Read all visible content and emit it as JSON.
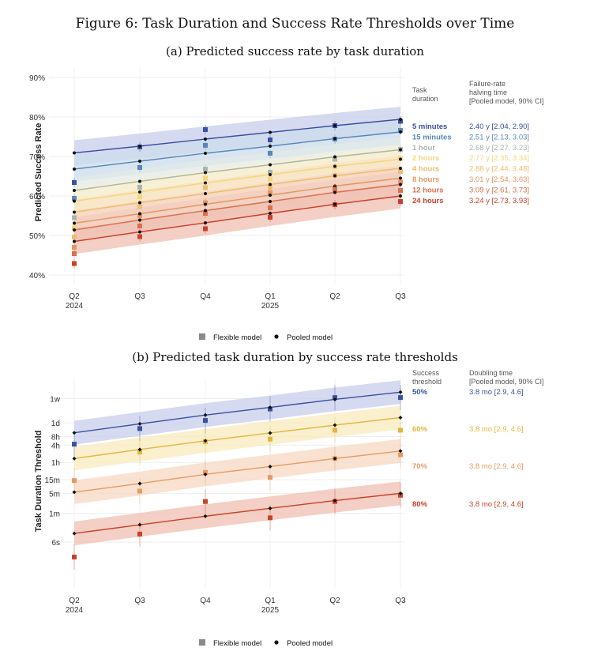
{
  "figure_title": "Figure 6: Task Duration and Success Rate Thresholds over Time",
  "legend": {
    "flexible": "Flexible model",
    "pooled": "Pooled model"
  },
  "x_ticks": [
    {
      "q": "Q2",
      "year": "2024"
    },
    {
      "q": "Q3",
      "year": ""
    },
    {
      "q": "Q4",
      "year": ""
    },
    {
      "q": "Q1",
      "year": "2025"
    },
    {
      "q": "Q2",
      "year": ""
    },
    {
      "q": "Q3",
      "year": ""
    }
  ],
  "chart_data": [
    {
      "type": "line",
      "title": "(a) Predicted success rate by task duration",
      "ylabel": "Predicted Success Rate",
      "y_ticks": [
        40,
        50,
        60,
        70,
        80,
        90
      ],
      "y_tick_labels": [
        "40%",
        "50%",
        "60%",
        "70%",
        "80%",
        "90%"
      ],
      "ylim": [
        38,
        92
      ],
      "x": [
        "2024 Q2",
        "2024 Q3",
        "2024 Q4",
        "2025 Q1",
        "2025 Q2",
        "2025 Q3"
      ],
      "legend_header_left": [
        "Task",
        "duration"
      ],
      "legend_header_right": [
        "Failure-rate",
        "halving time",
        "[Pooled model, 90% CI]"
      ],
      "series": [
        {
          "name": "5 minutes",
          "annotation": "2.40 y [2.04, 2.90]",
          "color": "#3a50a0",
          "band": "#c8cdeb",
          "pooled": [
            70.9,
            72.6,
            74.4,
            76.1,
            77.8,
            79.4
          ],
          "flexible": [
            63.4,
            72.4,
            76.8,
            74.2,
            77.8,
            78.9
          ]
        },
        {
          "name": "15 minutes",
          "annotation": "2.51 y [2.13, 3.03]",
          "color": "#5a86b8",
          "band": "#cbdcec",
          "pooled": [
            66.8,
            68.8,
            70.8,
            72.6,
            74.5,
            76.2
          ],
          "flexible": [
            59.4,
            67.2,
            72.8,
            70.8,
            74.4,
            76.6
          ]
        },
        {
          "name": "1 hour",
          "annotation": "2.68 y [2.27, 3.23]",
          "color": "#a9b5ae",
          "band": "#e3e9e5",
          "pooled": [
            61.4,
            63.7,
            65.9,
            67.9,
            69.9,
            71.7
          ],
          "flexible": [
            54.5,
            62.2,
            66.8,
            66.0,
            69.3,
            71.8
          ]
        },
        {
          "name": "2 hours",
          "annotation": "2.77 y [2.35, 3.34]",
          "color": "#f3d67e",
          "band": "#fbf0cc",
          "pooled": [
            58.7,
            61.0,
            63.3,
            65.4,
            67.5,
            69.3
          ],
          "flexible": [
            51.9,
            59.8,
            64.5,
            64.3,
            67.4,
            69.5
          ]
        },
        {
          "name": "4 hours",
          "annotation": "2.88 y [2.44, 3.48]",
          "color": "#eebc72",
          "band": "#f8e3c4",
          "pooled": [
            55.9,
            58.3,
            60.6,
            62.9,
            65.1,
            67.0
          ],
          "flexible": [
            49.6,
            57.3,
            62.1,
            62.1,
            65.2,
            66.2
          ]
        },
        {
          "name": "8 hours",
          "annotation": "3.01 y [2.54, 3.63]",
          "color": "#e39562",
          "band": "#f6d6c2",
          "pooled": [
            53.1,
            55.5,
            57.9,
            60.2,
            62.5,
            64.5
          ],
          "flexible": [
            47.0,
            55.0,
            58.3,
            60.8,
            62.0,
            63.5
          ]
        },
        {
          "name": "12 hours",
          "annotation": "3.09 y [2.61, 3.73]",
          "color": "#d8704f",
          "band": "#f2ccbd",
          "pooled": [
            51.4,
            53.9,
            56.3,
            58.6,
            60.9,
            62.9
          ],
          "flexible": [
            45.4,
            52.4,
            55.6,
            57.0,
            61.6,
            61.4
          ]
        },
        {
          "name": "24 hours",
          "annotation": "3.24 y [2.73, 3.93]",
          "color": "#c8412c",
          "band": "#efbfb2",
          "pooled": [
            48.5,
            50.9,
            53.2,
            55.6,
            57.9,
            60.0
          ],
          "flexible": [
            42.9,
            49.7,
            51.7,
            54.6,
            57.8,
            58.6
          ]
        }
      ]
    },
    {
      "type": "line",
      "title": "(b) Predicted task duration by success rate thresholds",
      "ylabel": "Task Duration Threshold",
      "y_scale": "log",
      "y_unit": "minutes",
      "y_ticks": [
        [
          0.1,
          "6s"
        ],
        [
          1,
          "1m"
        ],
        [
          5,
          "5m"
        ],
        [
          15,
          "15m"
        ],
        [
          60,
          "1h"
        ],
        [
          240,
          "4h"
        ],
        [
          480,
          "8h"
        ],
        [
          1440,
          "1d"
        ],
        [
          10080,
          "1w"
        ]
      ],
      "ylim_minutes": [
        0.013,
        60000
      ],
      "x": [
        "2024 Q2",
        "2024 Q3",
        "2024 Q4",
        "2025 Q1",
        "2025 Q2",
        "2025 Q3"
      ],
      "legend_header_left": [
        "Success",
        "threshold"
      ],
      "legend_header_right": [
        "Doubling time",
        "[Pooled model, 90% CI]"
      ],
      "series": [
        {
          "name": "50%",
          "annotation": "3.8 mo [2.9, 4.6]",
          "color": "#3a50a0",
          "band": "#c8cdeb",
          "pooled_minutes": [
            650,
            1330,
            2700,
            5000,
            9500,
            17000
          ],
          "flexible_minutes": [
            260,
            910,
            1750,
            4400,
            11000,
            11000
          ]
        },
        {
          "name": "60%",
          "annotation": "3.8 mo [2.9, 4.6]",
          "color": "#e2b63e",
          "band": "#f8ebbe",
          "pooled_minutes": [
            82,
            170,
            340,
            640,
            1200,
            2200
          ],
          "flexible_minutes": [
            0,
            138,
            320,
            390,
            800,
            800
          ]
        },
        {
          "name": "70%",
          "annotation": "3.8 mo [2.9, 4.6]",
          "color": "#e69a64",
          "band": "#f7d8c3",
          "pooled_minutes": [
            5.5,
            11,
            23,
            43,
            82,
            150
          ],
          "flexible_minutes": [
            14,
            6,
            27,
            18,
            82,
            110
          ]
        },
        {
          "name": "80%",
          "annotation": "3.8 mo [2.9, 4.6]",
          "color": "#c8412c",
          "band": "#efbfb2",
          "pooled_minutes": [
            0.2,
            0.4,
            0.8,
            1.5,
            2.8,
            5.0
          ],
          "flexible_minutes": [
            0.03,
            0.19,
            2.6,
            0.7,
            2.6,
            4.3
          ]
        }
      ]
    }
  ]
}
